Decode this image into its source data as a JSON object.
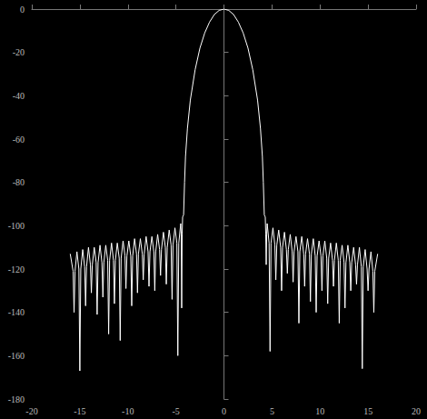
{
  "chart_data": {
    "type": "line",
    "color": "#ffffff",
    "grid": false,
    "x": [
      -16.0,
      -15.7,
      -15.6,
      -15.5,
      -15.3,
      -15.1,
      -15.0,
      -14.9,
      -14.7,
      -14.5,
      -14.4,
      -14.3,
      -14.1,
      -13.9,
      -13.8,
      -13.7,
      -13.5,
      -13.3,
      -13.2,
      -13.1,
      -12.9,
      -12.7,
      -12.6,
      -12.5,
      -12.3,
      -12.1,
      -12.0,
      -11.9,
      -11.7,
      -11.5,
      -11.4,
      -11.3,
      -11.1,
      -10.9,
      -10.8,
      -10.7,
      -10.5,
      -10.3,
      -10.2,
      -10.1,
      -9.9,
      -9.7,
      -9.6,
      -9.5,
      -9.3,
      -9.1,
      -9.0,
      -8.9,
      -8.7,
      -8.5,
      -8.4,
      -8.3,
      -8.1,
      -7.9,
      -7.8,
      -7.7,
      -7.5,
      -7.3,
      -7.2,
      -7.1,
      -6.9,
      -6.7,
      -6.6,
      -6.5,
      -6.3,
      -6.1,
      -6.0,
      -5.9,
      -5.7,
      -5.5,
      -5.4,
      -5.3,
      -5.1,
      -4.9,
      -4.8,
      -4.7,
      -4.5,
      -4.45,
      -4.4,
      -4.35,
      -4.3,
      -4.2,
      -4.1,
      -4.0,
      -3.8,
      -3.5,
      -3.0,
      -2.5,
      -2.0,
      -1.5,
      -1.0,
      -0.5,
      0,
      0.5,
      1.0,
      1.5,
      2.0,
      2.5,
      3.0,
      3.5,
      3.8,
      4.0,
      4.1,
      4.2,
      4.3,
      4.35,
      4.4,
      4.45,
      4.5,
      4.7,
      4.8,
      4.9,
      5.1,
      5.3,
      5.4,
      5.5,
      5.7,
      5.9,
      6.0,
      6.1,
      6.3,
      6.5,
      6.6,
      6.7,
      6.9,
      7.1,
      7.2,
      7.3,
      7.5,
      7.7,
      7.8,
      7.9,
      8.1,
      8.3,
      8.4,
      8.5,
      8.7,
      8.9,
      9.0,
      9.1,
      9.3,
      9.5,
      9.6,
      9.7,
      9.9,
      10.1,
      10.2,
      10.3,
      10.5,
      10.7,
      10.8,
      10.9,
      11.1,
      11.3,
      11.4,
      11.5,
      11.7,
      11.9,
      12.0,
      12.1,
      12.3,
      12.5,
      12.6,
      12.7,
      12.9,
      13.1,
      13.2,
      13.3,
      13.5,
      13.7,
      13.8,
      13.9,
      14.1,
      14.3,
      14.4,
      14.5,
      14.7,
      14.9,
      15.0,
      15.1,
      15.3,
      15.5,
      15.6,
      15.7,
      16.0
    ],
    "values": [
      -113,
      -121,
      -140,
      -121,
      -112,
      -120,
      -167,
      -120,
      -111,
      -119,
      -137,
      -119,
      -110,
      -118,
      -131,
      -118,
      -110,
      -117,
      -141,
      -117,
      -109,
      -117,
      -133,
      -117,
      -109,
      -116,
      -150,
      -116,
      -108,
      -116,
      -136,
      -116,
      -108,
      -115,
      -153,
      -115,
      -107,
      -114,
      -129,
      -114,
      -107,
      -114,
      -137,
      -114,
      -106,
      -113,
      -131,
      -113,
      -106,
      -113,
      -125,
      -113,
      -105,
      -112,
      -128,
      -112,
      -105,
      -112,
      -130,
      -112,
      -104,
      -111,
      -123,
      -111,
      -103,
      -110,
      -127,
      -110,
      -102,
      -109,
      -134,
      -109,
      -101,
      -108,
      -160,
      -108,
      -99,
      -104,
      -138,
      -104,
      -96,
      -95,
      -80,
      -68,
      -55,
      -42,
      -28,
      -18,
      -11,
      -6,
      -2.5,
      -0.6,
      0,
      -0.6,
      -2.5,
      -6,
      -11,
      -18,
      -28,
      -42,
      -55,
      -68,
      -80,
      -95,
      -96,
      -104,
      -118,
      -104,
      -99,
      -108,
      -158,
      -108,
      -101,
      -109,
      -125,
      -109,
      -102,
      -110,
      -130,
      -110,
      -103,
      -111,
      -122,
      -111,
      -104,
      -112,
      -126,
      -112,
      -105,
      -112,
      -145,
      -112,
      -105,
      -113,
      -128,
      -113,
      -106,
      -113,
      -135,
      -113,
      -106,
      -114,
      -140,
      -114,
      -107,
      -114,
      -130,
      -114,
      -107,
      -115,
      -136,
      -115,
      -108,
      -116,
      -128,
      -116,
      -108,
      -116,
      -145,
      -116,
      -109,
      -117,
      -138,
      -117,
      -109,
      -117,
      -130,
      -117,
      -110,
      -118,
      -127,
      -118,
      -110,
      -119,
      -166,
      -119,
      -111,
      -120,
      -130,
      -120,
      -112,
      -121,
      -140,
      -121,
      -113
    ],
    "xlim": [
      -20,
      20
    ],
    "xticks": [
      -20,
      -15,
      -10,
      -5,
      0,
      5,
      10,
      15,
      20
    ],
    "ylim": [
      -180,
      0
    ],
    "yticks": [
      -180,
      -160,
      -140,
      -120,
      -100,
      -80,
      -60,
      -40,
      -20,
      0
    ]
  }
}
